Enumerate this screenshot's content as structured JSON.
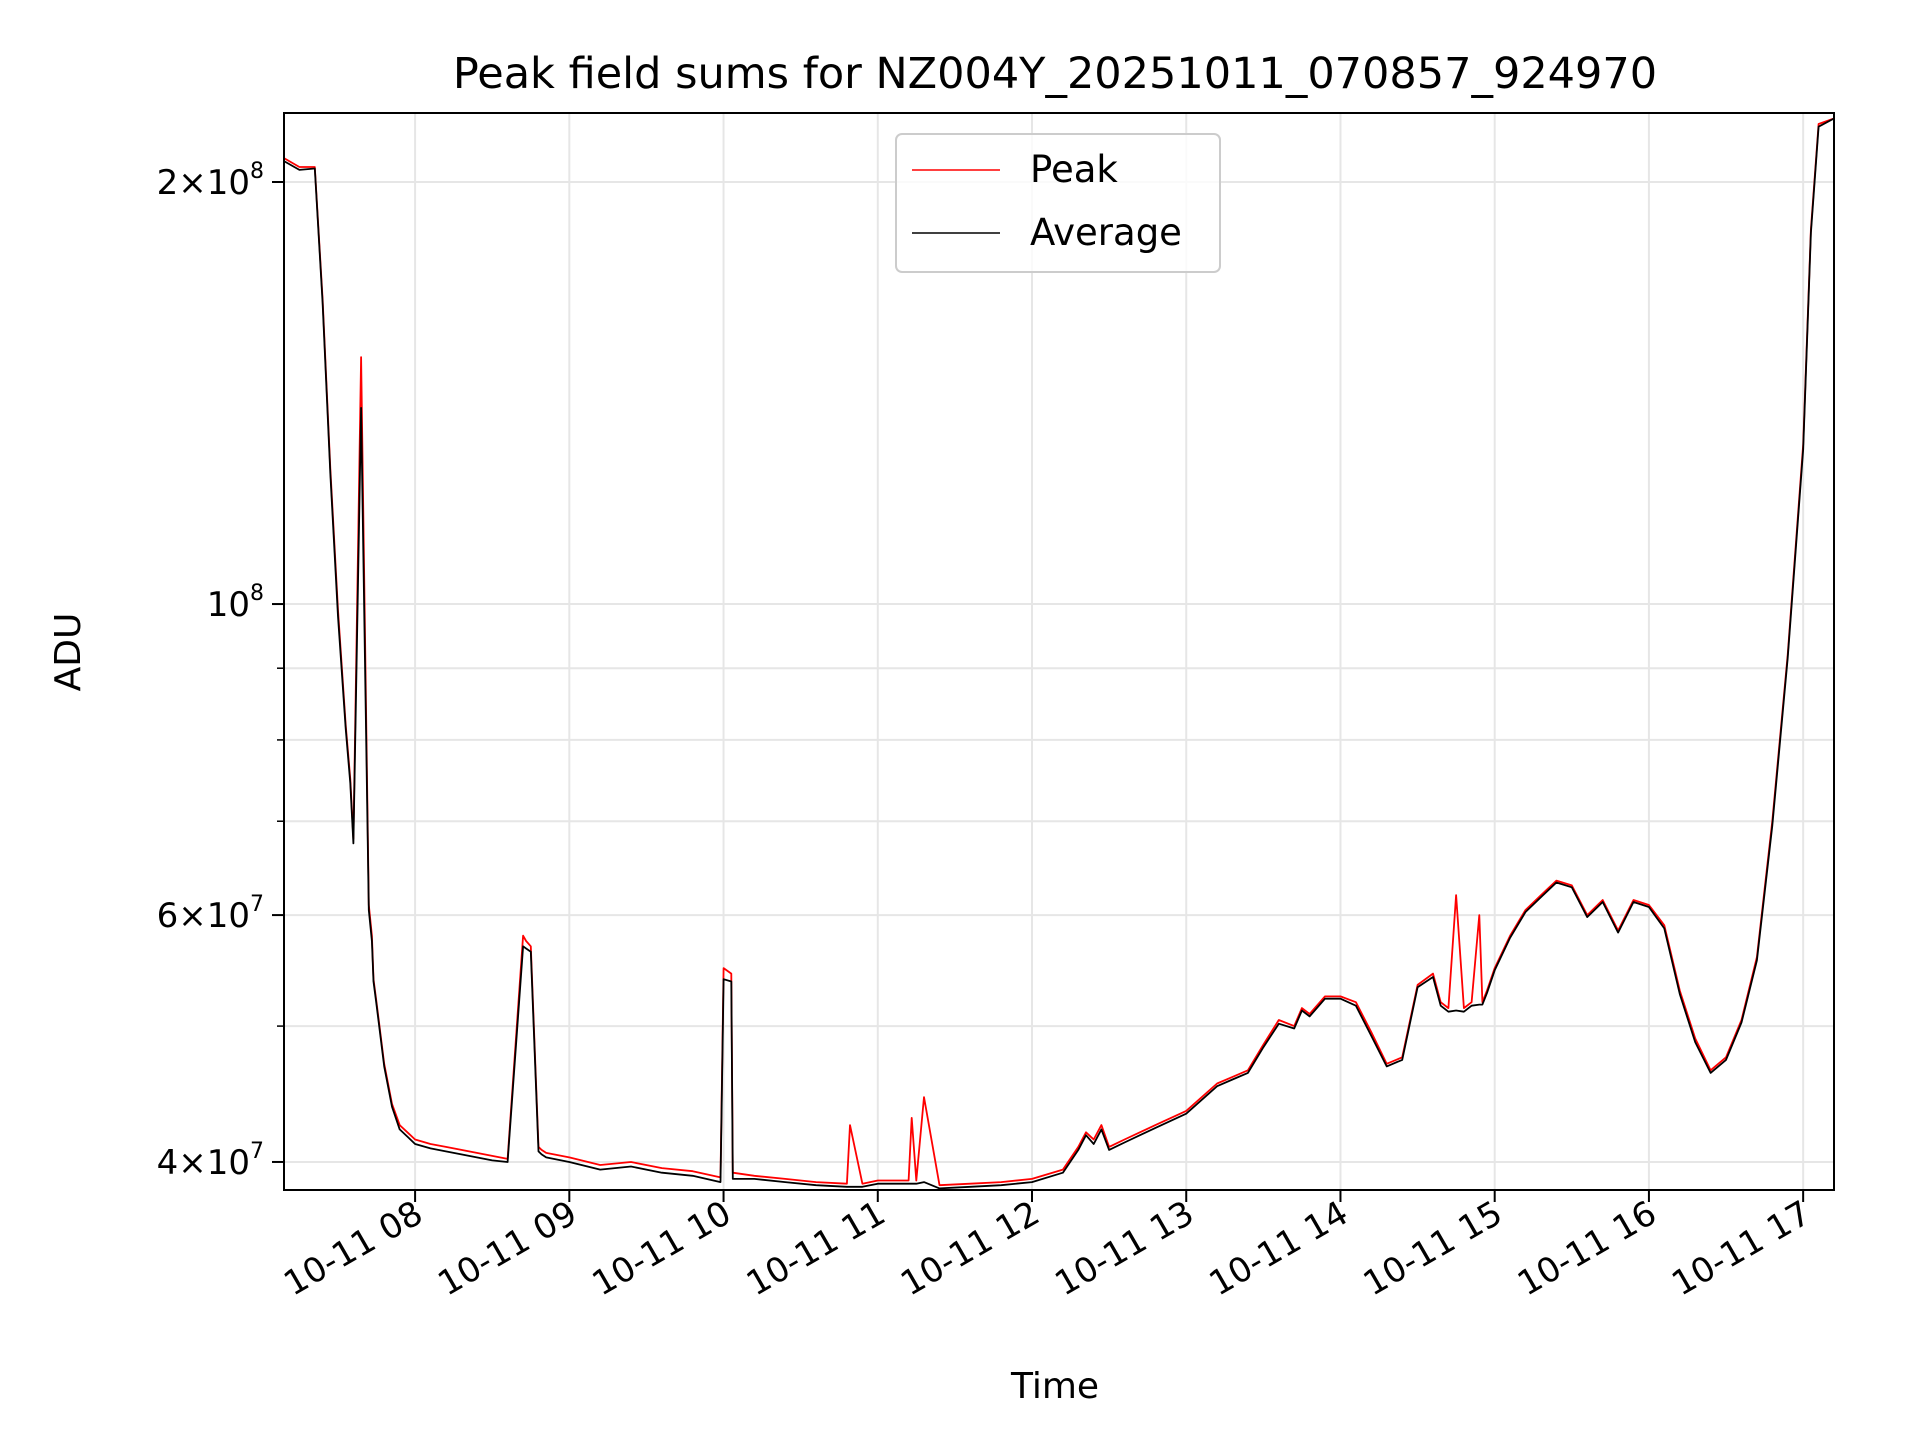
{
  "chart_data": {
    "type": "line",
    "title": "Peak field sums for NZ004Y_20251011_070857_924970",
    "xlabel": "Time",
    "ylabel": "ADU",
    "yscale": "log",
    "ylim": [
      38200000,
      224000000
    ],
    "xlim_hours": [
      7.15,
      17.2
    ],
    "grid": true,
    "legend_position": "top-center",
    "x_ticks": [
      {
        "hour": 8,
        "label": "10-11 08"
      },
      {
        "hour": 9,
        "label": "10-11 09"
      },
      {
        "hour": 10,
        "label": "10-11 10"
      },
      {
        "hour": 11,
        "label": "10-11 11"
      },
      {
        "hour": 12,
        "label": "10-11 12"
      },
      {
        "hour": 13,
        "label": "10-11 13"
      },
      {
        "hour": 14,
        "label": "10-11 14"
      },
      {
        "hour": 15,
        "label": "10-11 15"
      },
      {
        "hour": 16,
        "label": "10-11 16"
      },
      {
        "hour": 17,
        "label": "10-11 17"
      }
    ],
    "y_ticks_major": [
      {
        "value": 40000000,
        "mantissa": "4",
        "exponent": "7"
      },
      {
        "value": 60000000,
        "mantissa": "6",
        "exponent": "7"
      },
      {
        "value": 100000000,
        "mantissa": "",
        "exponent": "8"
      },
      {
        "value": 200000000,
        "mantissa": "2",
        "exponent": "8"
      }
    ],
    "y_ticks_minor": [
      50000000,
      70000000,
      80000000,
      90000000
    ],
    "series": [
      {
        "name": "Peak",
        "color": "#ff0000",
        "x_hours": [
          7.15,
          7.25,
          7.35,
          7.4,
          7.45,
          7.5,
          7.55,
          7.58,
          7.6,
          7.65,
          7.7,
          7.72,
          7.73,
          7.75,
          7.8,
          7.85,
          7.9,
          7.95,
          8.0,
          8.1,
          8.2,
          8.3,
          8.4,
          8.5,
          8.6,
          8.7,
          8.72,
          8.75,
          8.8,
          8.82,
          8.85,
          9.0,
          9.2,
          9.4,
          9.6,
          9.8,
          9.98,
          10.0,
          10.05,
          10.06,
          10.2,
          10.4,
          10.6,
          10.8,
          10.82,
          10.9,
          11.0,
          11.2,
          11.22,
          11.25,
          11.3,
          11.4,
          11.6,
          11.8,
          12.0,
          12.2,
          12.3,
          12.35,
          12.4,
          12.45,
          12.5,
          12.6,
          12.8,
          13.0,
          13.2,
          13.3,
          13.4,
          13.5,
          13.6,
          13.7,
          13.75,
          13.8,
          13.9,
          14.0,
          14.1,
          14.2,
          14.3,
          14.4,
          14.5,
          14.6,
          14.65,
          14.7,
          14.75,
          14.8,
          14.85,
          14.9,
          14.92,
          14.95,
          15.0,
          15.1,
          15.2,
          15.3,
          15.4,
          15.5,
          15.6,
          15.7,
          15.8,
          15.9,
          16.0,
          16.1,
          16.2,
          16.3,
          16.4,
          16.5,
          16.6,
          16.7,
          16.8,
          16.9,
          17.0,
          17.05,
          17.1,
          17.2
        ],
        "values": [
          208000000,
          205000000,
          205000000,
          165000000,
          125000000,
          99000000,
          82000000,
          75000000,
          68000000,
          150000000,
          61000000,
          58000000,
          54000000,
          52000000,
          47000000,
          44000000,
          42500000,
          42000000,
          41500000,
          41200000,
          41000000,
          40800000,
          40600000,
          40400000,
          40200000,
          58000000,
          57500000,
          57000000,
          41000000,
          40800000,
          40600000,
          40300000,
          39800000,
          40000000,
          39600000,
          39400000,
          39000000,
          55000000,
          54500000,
          39300000,
          39100000,
          38900000,
          38700000,
          38600000,
          42500000,
          38600000,
          38800000,
          38800000,
          43000000,
          38800000,
          44500000,
          38500000,
          38600000,
          38700000,
          38900000,
          39500000,
          41000000,
          42000000,
          41500000,
          42500000,
          41000000,
          41500000,
          42500000,
          43500000,
          45500000,
          46000000,
          46500000,
          48500000,
          50500000,
          50000000,
          51500000,
          51000000,
          52500000,
          52500000,
          52000000,
          49500000,
          47000000,
          47500000,
          53500000,
          54500000,
          52000000,
          51500000,
          62000000,
          51500000,
          52000000,
          60000000,
          52000000,
          53000000,
          55000000,
          58000000,
          60500000,
          62000000,
          63500000,
          63000000,
          60000000,
          61500000,
          58500000,
          61500000,
          61000000,
          59000000,
          53000000,
          49000000,
          46500000,
          47500000,
          50500000,
          56000000,
          70000000,
          92000000,
          130000000,
          185000000,
          220000000,
          222000000
        ]
      },
      {
        "name": "Average",
        "color": "#000000",
        "x_hours": [
          7.15,
          7.25,
          7.35,
          7.4,
          7.45,
          7.5,
          7.55,
          7.58,
          7.6,
          7.65,
          7.7,
          7.72,
          7.73,
          7.75,
          7.8,
          7.85,
          7.9,
          7.95,
          8.0,
          8.1,
          8.2,
          8.3,
          8.4,
          8.5,
          8.6,
          8.7,
          8.72,
          8.75,
          8.8,
          8.82,
          8.85,
          9.0,
          9.2,
          9.4,
          9.6,
          9.8,
          9.98,
          10.0,
          10.05,
          10.06,
          10.2,
          10.4,
          10.6,
          10.8,
          10.82,
          10.9,
          11.0,
          11.2,
          11.22,
          11.25,
          11.3,
          11.4,
          11.6,
          11.8,
          12.0,
          12.2,
          12.3,
          12.35,
          12.4,
          12.45,
          12.5,
          12.6,
          12.8,
          13.0,
          13.2,
          13.3,
          13.4,
          13.5,
          13.6,
          13.7,
          13.75,
          13.8,
          13.9,
          14.0,
          14.1,
          14.2,
          14.3,
          14.4,
          14.5,
          14.6,
          14.65,
          14.7,
          14.75,
          14.8,
          14.85,
          14.9,
          14.92,
          14.95,
          15.0,
          15.1,
          15.2,
          15.3,
          15.4,
          15.5,
          15.6,
          15.7,
          15.8,
          15.9,
          16.0,
          16.1,
          16.2,
          16.3,
          16.4,
          16.5,
          16.6,
          16.7,
          16.8,
          16.9,
          17.0,
          17.05,
          17.1,
          17.2
        ],
        "values": [
          207000000,
          204000000,
          204500000,
          164000000,
          124000000,
          98000000,
          81500000,
          74500000,
          67500000,
          138000000,
          60500000,
          57500000,
          53800000,
          51800000,
          46800000,
          43800000,
          42200000,
          41700000,
          41200000,
          40900000,
          40700000,
          40500000,
          40300000,
          40100000,
          40000000,
          57000000,
          56800000,
          56500000,
          40700000,
          40500000,
          40300000,
          40000000,
          39500000,
          39700000,
          39300000,
          39100000,
          38700000,
          54000000,
          53800000,
          38900000,
          38900000,
          38700000,
          38500000,
          38400000,
          38400000,
          38400000,
          38600000,
          38600000,
          38600000,
          38600000,
          38700000,
          38300000,
          38400000,
          38500000,
          38700000,
          39300000,
          40800000,
          41800000,
          41200000,
          42200000,
          40800000,
          41300000,
          42300000,
          43300000,
          45300000,
          45800000,
          46300000,
          48300000,
          50200000,
          49800000,
          51300000,
          50800000,
          52300000,
          52300000,
          51700000,
          49200000,
          46800000,
          47300000,
          53300000,
          54200000,
          51700000,
          51200000,
          51300000,
          51200000,
          51700000,
          51800000,
          51800000,
          52800000,
          54800000,
          57800000,
          60300000,
          61800000,
          63300000,
          62800000,
          59800000,
          61300000,
          58300000,
          61300000,
          60800000,
          58700000,
          52700000,
          48700000,
          46300000,
          47300000,
          50300000,
          55700000,
          69500000,
          91500000,
          129000000,
          184000000,
          219000000,
          222000000
        ]
      }
    ]
  }
}
